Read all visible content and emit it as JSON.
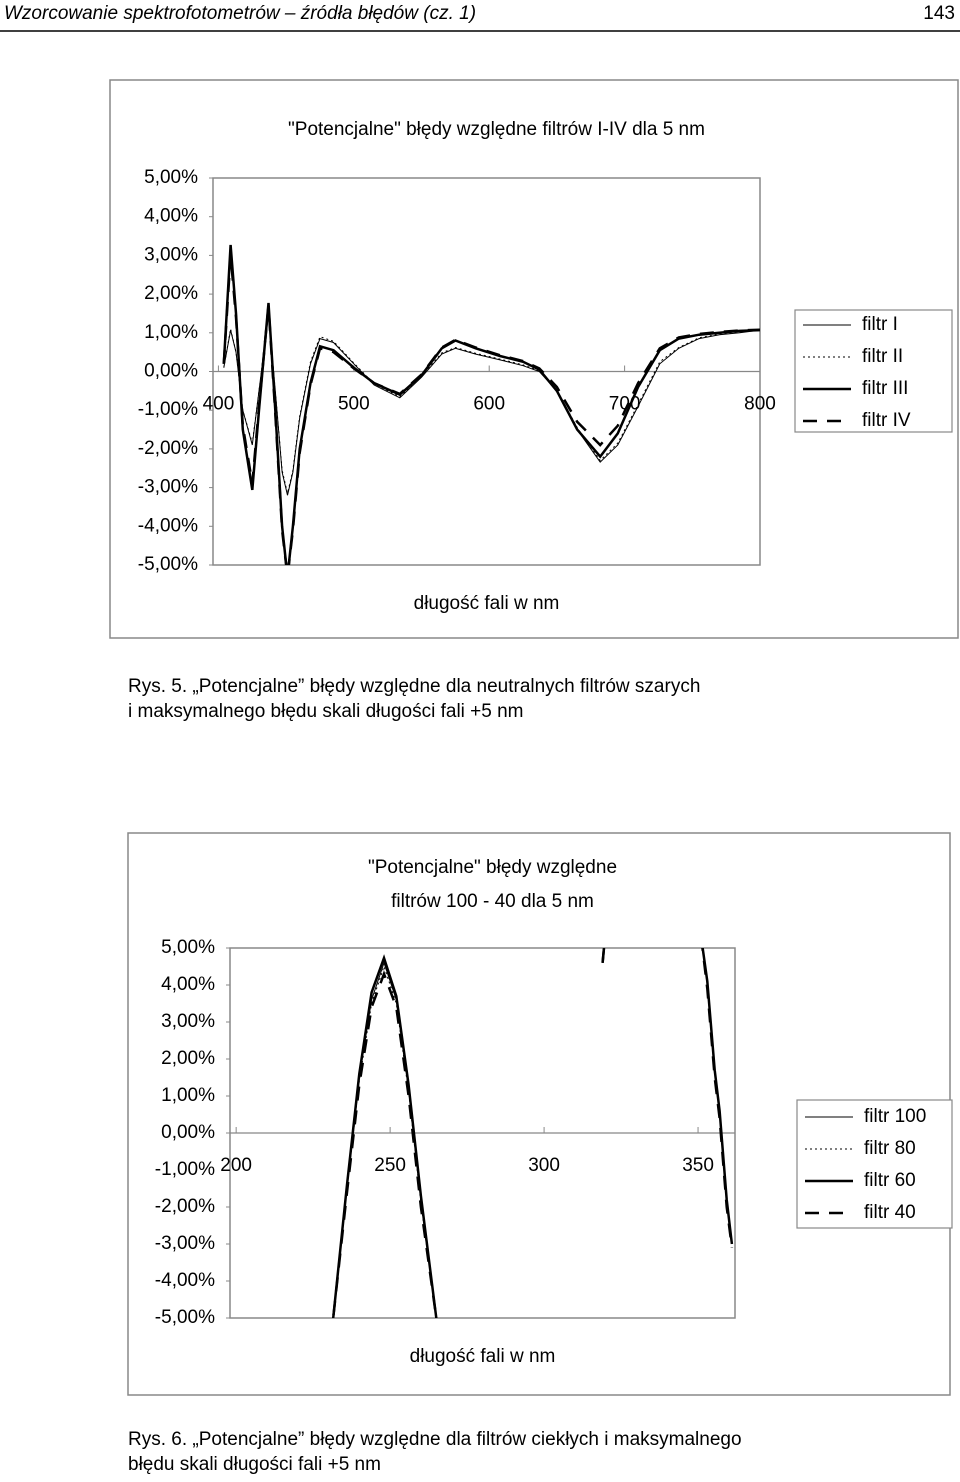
{
  "header": {
    "title": "Wzorcowanie spektrofotometrów – źródła błędów (cz. 1)",
    "page": "143"
  },
  "chart_data": [
    {
      "type": "line",
      "title": [
        "\"Potencjalne\" błędy względne filtrów I-IV dla 5 nm"
      ],
      "x_label": "długość fali w nm",
      "x": [
        404,
        409,
        413,
        418,
        425,
        430,
        437,
        442,
        447,
        451,
        455,
        460,
        468,
        475,
        485,
        500,
        515,
        534,
        550,
        565,
        575,
        590,
        608,
        625,
        637,
        650,
        665,
        682,
        695,
        710,
        726,
        740,
        755,
        770,
        785,
        800
      ],
      "xlim": [
        396,
        800
      ],
      "xticks": [
        400,
        500,
        600,
        700,
        800
      ],
      "ylim": [
        -5,
        5
      ],
      "yticks": [
        {
          "value": 5,
          "label": "5,00%"
        },
        {
          "value": 4,
          "label": "4,00%"
        },
        {
          "value": 3,
          "label": "3,00%"
        },
        {
          "value": 2,
          "label": "2,00%"
        },
        {
          "value": 1,
          "label": "1,00%"
        },
        {
          "value": 0,
          "label": "0,00%"
        },
        {
          "value": -1,
          "label": "-1,00%"
        },
        {
          "value": -2,
          "label": "-2,00%"
        },
        {
          "value": -3,
          "label": "-3,00%"
        },
        {
          "value": -4,
          "label": "-4,00%"
        },
        {
          "value": -5,
          "label": "-5,00%"
        }
      ],
      "grid": false,
      "legend": "right",
      "series": [
        {
          "name": "filtr I",
          "color": "#000000",
          "line_style": "solid",
          "width": 1,
          "values": [
            0.1,
            1.07,
            0.5,
            -1.0,
            -1.9,
            -0.5,
            1.46,
            -0.5,
            -2.6,
            -3.2,
            -2.6,
            -1.2,
            0.2,
            0.85,
            0.75,
            0.2,
            -0.35,
            -0.68,
            -0.15,
            0.45,
            0.6,
            0.45,
            0.3,
            0.15,
            0.0,
            -0.5,
            -1.5,
            -2.34,
            -1.9,
            -0.9,
            0.2,
            0.6,
            0.85,
            0.95,
            1.0,
            1.07
          ]
        },
        {
          "name": "filtr II",
          "color": "#000000",
          "line_style": "dotted",
          "width": 1,
          "values": [
            0.1,
            1.1,
            0.5,
            -1.0,
            -1.85,
            -0.5,
            1.5,
            -0.5,
            -2.55,
            -3.15,
            -2.55,
            -1.15,
            0.25,
            0.9,
            0.78,
            0.22,
            -0.32,
            -0.65,
            -0.12,
            0.48,
            0.62,
            0.47,
            0.32,
            0.17,
            0.02,
            -0.48,
            -1.45,
            -2.3,
            -1.85,
            -0.85,
            0.25,
            0.62,
            0.87,
            0.97,
            1.02,
            1.08
          ]
        },
        {
          "name": "filtr III",
          "color": "#000000",
          "line_style": "solid",
          "width": 2.5,
          "values": [
            0.2,
            3.27,
            1.5,
            -1.5,
            -3.06,
            -1.0,
            1.77,
            -1.0,
            -4.0,
            -5.3,
            -4.0,
            -2.0,
            -0.3,
            0.65,
            0.55,
            0.1,
            -0.3,
            -0.6,
            -0.1,
            0.6,
            0.8,
            0.6,
            0.4,
            0.25,
            0.05,
            -0.5,
            -1.5,
            -2.2,
            -1.6,
            -0.4,
            0.55,
            0.85,
            0.95,
            1.0,
            1.05,
            1.07
          ]
        },
        {
          "name": "filtr IV",
          "color": "#000000",
          "line_style": "dashed",
          "width": 2.5,
          "values": [
            0.2,
            3.0,
            1.4,
            -1.4,
            -2.9,
            -0.9,
            1.7,
            -1.1,
            -4.1,
            -5.3,
            -4.1,
            -2.1,
            -0.35,
            0.6,
            0.5,
            0.08,
            -0.3,
            -0.58,
            -0.08,
            0.62,
            0.82,
            0.62,
            0.42,
            0.27,
            0.08,
            -0.4,
            -1.3,
            -1.9,
            -1.4,
            -0.3,
            0.6,
            0.88,
            0.97,
            1.02,
            1.06,
            1.08
          ]
        }
      ]
    },
    {
      "type": "line",
      "title": [
        "\"Potencjalne\" błędy względne",
        "filtrów 100 - 40 dla 5 nm"
      ],
      "x_label": "długość fali w nm",
      "x": [
        228,
        231.5,
        236,
        240,
        244,
        248,
        252,
        256,
        260,
        265,
        268,
        290,
        319,
        320,
        330,
        351,
        353,
        355.4,
        357,
        359.3,
        361
      ],
      "xlim": [
        198,
        362
      ],
      "xticks": [
        200,
        250,
        300,
        350
      ],
      "ylim": [
        -5,
        5
      ],
      "yticks": [
        {
          "value": 5,
          "label": "5,00%"
        },
        {
          "value": 4,
          "label": "4,00%"
        },
        {
          "value": 3,
          "label": "3,00%"
        },
        {
          "value": 2,
          "label": "2,00%"
        },
        {
          "value": 1,
          "label": "1,00%"
        },
        {
          "value": 0,
          "label": "0,00%"
        },
        {
          "value": -1,
          "label": "-1,00%"
        },
        {
          "value": -2,
          "label": "-2,00%"
        },
        {
          "value": -3,
          "label": "-3,00%"
        },
        {
          "value": -4,
          "label": "-4,00%"
        },
        {
          "value": -5,
          "label": "-5,00%"
        }
      ],
      "grid": false,
      "legend": "right",
      "series": [
        {
          "name": "filtr 100",
          "color": "#000000",
          "line_style": "solid",
          "width": 1,
          "values": [
            -7.5,
            -5,
            -1.5,
            1.5,
            3.6,
            4.6,
            3.6,
            1.2,
            -1.8,
            -5,
            -7,
            null,
            4.6,
            5.5,
            null,
            5.3,
            4.0,
            1.7,
            0.6,
            -1.8,
            -3.0
          ]
        },
        {
          "name": "filtr 80",
          "color": "#000000",
          "line_style": "dotted",
          "width": 1,
          "values": [
            -7.5,
            -5,
            -1.5,
            1.4,
            3.5,
            4.5,
            3.5,
            1.1,
            -1.9,
            -5,
            -7,
            null,
            4.6,
            5.5,
            null,
            5.3,
            4.0,
            1.6,
            0.5,
            -1.9,
            -3.0
          ]
        },
        {
          "name": "filtr 60",
          "color": "#000000",
          "line_style": "solid",
          "width": 2.5,
          "values": [
            -7.5,
            -5,
            -1.4,
            1.6,
            3.8,
            4.73,
            3.7,
            1.3,
            -1.7,
            -5,
            -7,
            null,
            4.6,
            5.5,
            null,
            5.3,
            4.1,
            1.7,
            0.6,
            -1.8,
            -3.0
          ]
        },
        {
          "name": "filtr 40",
          "color": "#000000",
          "line_style": "dashed",
          "width": 2.5,
          "values": [
            -7.5,
            -5,
            -1.6,
            1.3,
            3.4,
            4.3,
            3.4,
            1.0,
            -2.0,
            -5,
            -7,
            null,
            4.6,
            5.5,
            null,
            5.3,
            3.9,
            1.5,
            0.4,
            -2.0,
            -3.1
          ]
        }
      ]
    }
  ],
  "captions": [
    [
      "Rys. 5. „Potencjalne” błędy względne dla neutralnych filtrów szarych",
      "i maksymalnego błędu skali długości fali +5 nm"
    ],
    [
      "Rys. 6. „Potencjalne” błędy względne dla filtrów ciekłych i maksymalnego",
      "błędu skali długości fali +5 nm"
    ]
  ]
}
